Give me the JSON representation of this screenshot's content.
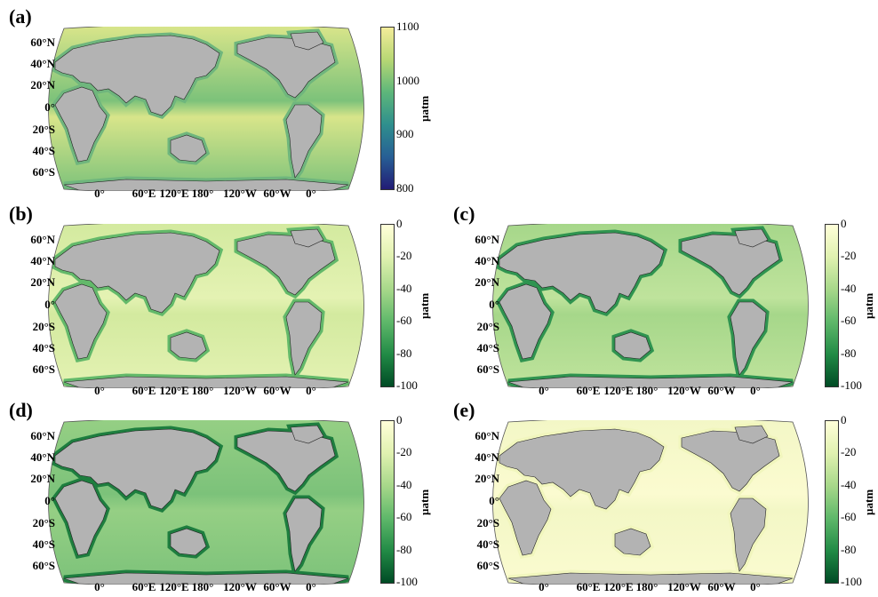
{
  "panels": [
    {
      "id": "a",
      "label": "(a)",
      "colorbar": {
        "ticks": [
          "1100",
          "1000",
          "900",
          "800"
        ],
        "unit": "µatm",
        "colors": [
          "#f3ec9a",
          "#b7d774",
          "#5db67a",
          "#2f8f8d",
          "#275f95",
          "#221c75"
        ]
      },
      "fill": "#7cc27a",
      "coast": "#6fb67d",
      "ocean_accent": "#d8e58a"
    },
    {
      "id": "b",
      "label": "(b)",
      "colorbar": {
        "ticks": [
          "0",
          "-20",
          "-40",
          "-60",
          "-80",
          "-100"
        ],
        "unit": "µatm",
        "colors": [
          "#ffffd9",
          "#e0f1b0",
          "#a7d88a",
          "#5fb86a",
          "#228b46",
          "#004b25"
        ]
      },
      "fill": "#e4f2b3",
      "coast": "#63b96a",
      "ocean_accent": "#d3ea9f"
    },
    {
      "id": "c",
      "label": "(c)",
      "colorbar": {
        "ticks": [
          "0",
          "-20",
          "-40",
          "-60",
          "-80",
          "-100"
        ],
        "unit": "µatm",
        "colors": [
          "#ffffd9",
          "#e0f1b0",
          "#a7d88a",
          "#5fb86a",
          "#228b46",
          "#004b25"
        ]
      },
      "fill": "#bfe39c",
      "coast": "#2f9450",
      "ocean_accent": "#a6d78a"
    },
    {
      "id": "d",
      "label": "(d)",
      "colorbar": {
        "ticks": [
          "0",
          "-20",
          "-40",
          "-60",
          "-80",
          "-100"
        ],
        "unit": "µatm",
        "colors": [
          "#ffffd9",
          "#e0f1b0",
          "#a7d88a",
          "#5fb86a",
          "#228b46",
          "#004b25"
        ]
      },
      "fill": "#7cc27a",
      "coast": "#1e7e3f",
      "ocean_accent": "#95cf84"
    },
    {
      "id": "e",
      "label": "(e)",
      "colorbar": {
        "ticks": [
          "0",
          "-20",
          "-40",
          "-60",
          "-80",
          "-100"
        ],
        "unit": "µatm",
        "colors": [
          "#ffffd9",
          "#e0f1b0",
          "#a7d88a",
          "#5fb86a",
          "#228b46",
          "#004b25"
        ]
      },
      "fill": "#fbfbd0",
      "coast": "#f1f6bd",
      "ocean_accent": "#f3f7c6"
    }
  ],
  "lat_labels": [
    "60°N",
    "40°N",
    "20°N",
    "0°",
    "20°S",
    "40°S",
    "60°S"
  ],
  "lon_labels": [
    "0°",
    "60°E",
    "120°E",
    "180°",
    "120°W",
    "60°W",
    "0°"
  ],
  "land_color": "#b3b3b3"
}
